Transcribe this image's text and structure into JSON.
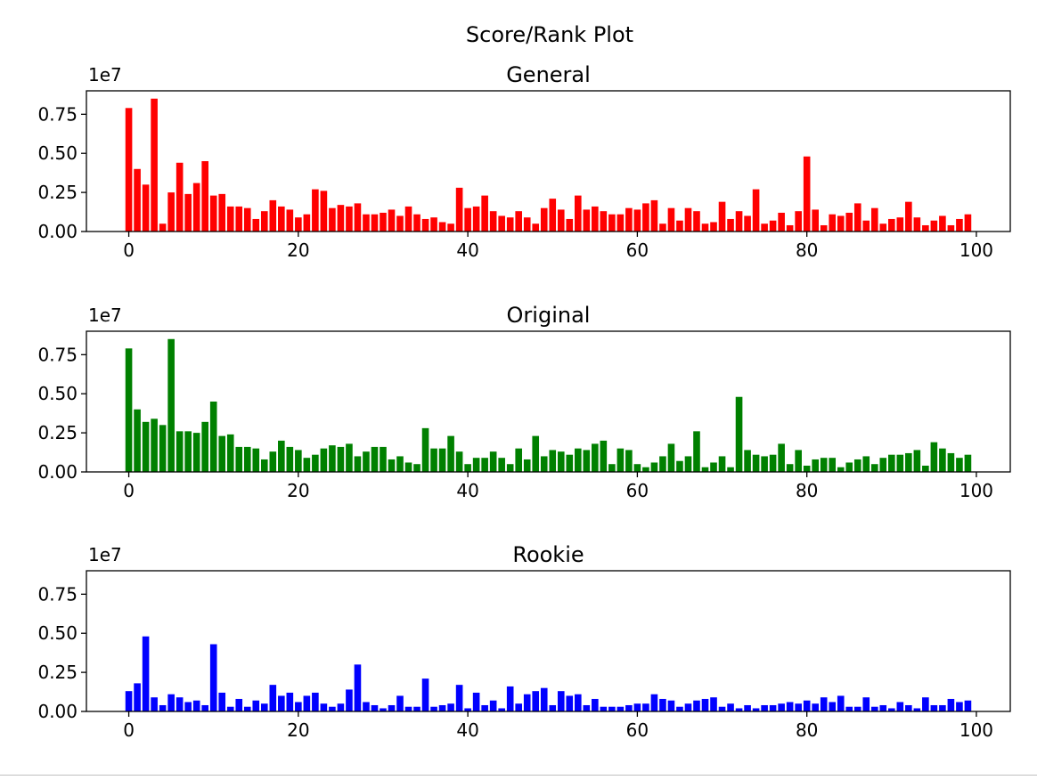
{
  "figure": {
    "suptitle": "Score/Rank Plot"
  },
  "chart_data": [
    {
      "type": "bar",
      "title": "General",
      "xlabel": "",
      "ylabel": "",
      "offset_label": "1e7",
      "color": "#ff0000",
      "xlim": [
        -5,
        104
      ],
      "ylim": [
        0,
        0.9
      ],
      "xticks": [
        0,
        20,
        40,
        60,
        80,
        100
      ],
      "yticks": [
        0.0,
        0.25,
        0.5,
        0.75
      ],
      "ytick_labels": [
        "0.00",
        "0.25",
        "0.50",
        "0.75"
      ],
      "x": [
        0,
        1,
        2,
        3,
        4,
        5,
        6,
        7,
        8,
        9,
        10,
        11,
        12,
        13,
        14,
        15,
        16,
        17,
        18,
        19,
        20,
        21,
        22,
        23,
        24,
        25,
        26,
        27,
        28,
        29,
        30,
        31,
        32,
        33,
        34,
        35,
        36,
        37,
        38,
        39,
        40,
        41,
        42,
        43,
        44,
        45,
        46,
        47,
        48,
        49,
        50,
        51,
        52,
        53,
        54,
        55,
        56,
        57,
        58,
        59,
        60,
        61,
        62,
        63,
        64,
        65,
        66,
        67,
        68,
        69,
        70,
        71,
        72,
        73,
        74,
        75,
        76,
        77,
        78,
        79,
        80,
        81,
        82,
        83,
        84,
        85,
        86,
        87,
        88,
        89,
        90,
        91,
        92,
        93,
        94,
        95,
        96,
        97,
        98,
        99
      ],
      "values": [
        0.79,
        0.4,
        0.3,
        0.85,
        0.05,
        0.25,
        0.44,
        0.24,
        0.31,
        0.45,
        0.23,
        0.24,
        0.16,
        0.16,
        0.15,
        0.08,
        0.13,
        0.2,
        0.16,
        0.14,
        0.09,
        0.11,
        0.27,
        0.26,
        0.15,
        0.17,
        0.16,
        0.18,
        0.11,
        0.11,
        0.12,
        0.14,
        0.1,
        0.16,
        0.11,
        0.08,
        0.09,
        0.06,
        0.05,
        0.28,
        0.15,
        0.16,
        0.23,
        0.13,
        0.1,
        0.09,
        0.13,
        0.09,
        0.05,
        0.15,
        0.21,
        0.14,
        0.08,
        0.23,
        0.14,
        0.16,
        0.13,
        0.11,
        0.11,
        0.15,
        0.14,
        0.18,
        0.2,
        0.05,
        0.15,
        0.07,
        0.15,
        0.13,
        0.05,
        0.06,
        0.19,
        0.08,
        0.13,
        0.1,
        0.27,
        0.05,
        0.07,
        0.12,
        0.04,
        0.13,
        0.48,
        0.14,
        0.04,
        0.11,
        0.1,
        0.12,
        0.18,
        0.07,
        0.15,
        0.05,
        0.08,
        0.09,
        0.19,
        0.09,
        0.04,
        0.07,
        0.1,
        0.04,
        0.08,
        0.11
      ]
    },
    {
      "type": "bar",
      "title": "Original",
      "xlabel": "",
      "ylabel": "",
      "offset_label": "1e7",
      "color": "#008000",
      "xlim": [
        -5,
        104
      ],
      "ylim": [
        0,
        0.9
      ],
      "xticks": [
        0,
        20,
        40,
        60,
        80,
        100
      ],
      "yticks": [
        0.0,
        0.25,
        0.5,
        0.75
      ],
      "ytick_labels": [
        "0.00",
        "0.25",
        "0.50",
        "0.75"
      ],
      "x": [
        0,
        1,
        2,
        3,
        4,
        5,
        6,
        7,
        8,
        9,
        10,
        11,
        12,
        13,
        14,
        15,
        16,
        17,
        18,
        19,
        20,
        21,
        22,
        23,
        24,
        25,
        26,
        27,
        28,
        29,
        30,
        31,
        32,
        33,
        34,
        35,
        36,
        37,
        38,
        39,
        40,
        41,
        42,
        43,
        44,
        45,
        46,
        47,
        48,
        49,
        50,
        51,
        52,
        53,
        54,
        55,
        56,
        57,
        58,
        59,
        60,
        61,
        62,
        63,
        64,
        65,
        66,
        67,
        68,
        69,
        70,
        71,
        72,
        73,
        74,
        75,
        76,
        77,
        78,
        79,
        80,
        81,
        82,
        83,
        84,
        85,
        86,
        87,
        88,
        89,
        90,
        91,
        92,
        93,
        94,
        95,
        96,
        97,
        98,
        99
      ],
      "values": [
        0.79,
        0.4,
        0.32,
        0.34,
        0.3,
        0.85,
        0.26,
        0.26,
        0.25,
        0.32,
        0.45,
        0.23,
        0.24,
        0.16,
        0.16,
        0.15,
        0.08,
        0.13,
        0.2,
        0.16,
        0.14,
        0.09,
        0.11,
        0.15,
        0.17,
        0.16,
        0.18,
        0.1,
        0.13,
        0.16,
        0.16,
        0.08,
        0.1,
        0.06,
        0.05,
        0.28,
        0.15,
        0.15,
        0.23,
        0.13,
        0.05,
        0.09,
        0.09,
        0.13,
        0.09,
        0.05,
        0.15,
        0.08,
        0.23,
        0.1,
        0.14,
        0.13,
        0.11,
        0.15,
        0.14,
        0.18,
        0.2,
        0.05,
        0.15,
        0.14,
        0.05,
        0.03,
        0.06,
        0.1,
        0.18,
        0.07,
        0.1,
        0.26,
        0.03,
        0.06,
        0.1,
        0.03,
        0.48,
        0.14,
        0.11,
        0.1,
        0.11,
        0.18,
        0.05,
        0.14,
        0.04,
        0.08,
        0.09,
        0.09,
        0.03,
        0.06,
        0.08,
        0.1,
        0.05,
        0.09,
        0.11,
        0.11,
        0.12,
        0.14,
        0.04,
        0.19,
        0.15,
        0.12,
        0.09,
        0.11
      ]
    },
    {
      "type": "bar",
      "title": "Rookie",
      "xlabel": "",
      "ylabel": "",
      "offset_label": "1e7",
      "color": "#0000ff",
      "xlim": [
        -5,
        104
      ],
      "ylim": [
        0,
        0.9
      ],
      "xticks": [
        0,
        20,
        40,
        60,
        80,
        100
      ],
      "yticks": [
        0.0,
        0.25,
        0.5,
        0.75
      ],
      "ytick_labels": [
        "0.00",
        "0.25",
        "0.50",
        "0.75"
      ],
      "x": [
        0,
        1,
        2,
        3,
        4,
        5,
        6,
        7,
        8,
        9,
        10,
        11,
        12,
        13,
        14,
        15,
        16,
        17,
        18,
        19,
        20,
        21,
        22,
        23,
        24,
        25,
        26,
        27,
        28,
        29,
        30,
        31,
        32,
        33,
        34,
        35,
        36,
        37,
        38,
        39,
        40,
        41,
        42,
        43,
        44,
        45,
        46,
        47,
        48,
        49,
        50,
        51,
        52,
        53,
        54,
        55,
        56,
        57,
        58,
        59,
        60,
        61,
        62,
        63,
        64,
        65,
        66,
        67,
        68,
        69,
        70,
        71,
        72,
        73,
        74,
        75,
        76,
        77,
        78,
        79,
        80,
        81,
        82,
        83,
        84,
        85,
        86,
        87,
        88,
        89,
        90,
        91,
        92,
        93,
        94,
        95,
        96,
        97,
        98,
        99
      ],
      "values": [
        0.13,
        0.18,
        0.48,
        0.09,
        0.04,
        0.11,
        0.09,
        0.06,
        0.07,
        0.04,
        0.43,
        0.12,
        0.03,
        0.08,
        0.03,
        0.07,
        0.05,
        0.17,
        0.1,
        0.12,
        0.06,
        0.1,
        0.12,
        0.05,
        0.03,
        0.05,
        0.14,
        0.3,
        0.06,
        0.04,
        0.02,
        0.04,
        0.1,
        0.03,
        0.03,
        0.21,
        0.03,
        0.04,
        0.05,
        0.17,
        0.02,
        0.12,
        0.04,
        0.07,
        0.02,
        0.16,
        0.05,
        0.11,
        0.13,
        0.15,
        0.04,
        0.13,
        0.1,
        0.11,
        0.04,
        0.08,
        0.03,
        0.03,
        0.03,
        0.04,
        0.05,
        0.05,
        0.11,
        0.08,
        0.07,
        0.03,
        0.05,
        0.07,
        0.08,
        0.09,
        0.03,
        0.05,
        0.02,
        0.04,
        0.02,
        0.04,
        0.04,
        0.05,
        0.06,
        0.05,
        0.07,
        0.05,
        0.09,
        0.06,
        0.1,
        0.03,
        0.03,
        0.09,
        0.03,
        0.04,
        0.02,
        0.06,
        0.04,
        0.02,
        0.09,
        0.04,
        0.04,
        0.08,
        0.06,
        0.07
      ]
    }
  ]
}
